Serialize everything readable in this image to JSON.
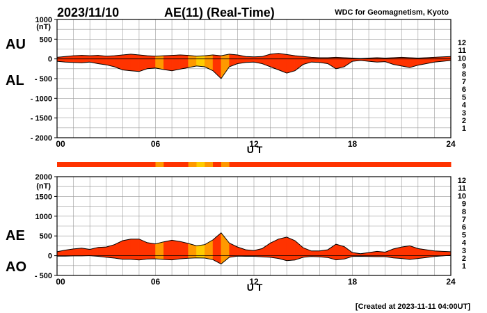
{
  "header": {
    "date": "2023/11/10",
    "title": "AE(11) (Real-Time)",
    "source": "WDC for Geomagnetism, Kyoto"
  },
  "footer": {
    "created": "[Created at 2023-11-11 04:00UT]"
  },
  "legend": {
    "labels": [
      "12",
      "11",
      "10",
      "9",
      "8",
      "7",
      "6",
      "5",
      "4",
      "3",
      "2",
      "1"
    ],
    "colors": [
      "#ff00ff",
      "#ff0000",
      "#ff9900",
      "#ffff00",
      "#00cc00",
      "#00cccc",
      "#0066ff",
      "#0000cc",
      "#cc00cc",
      "#000000",
      "#555555",
      "#aaaaaa"
    ]
  },
  "colors": {
    "stations_11": "#ff3300",
    "stations_10": "#ff9900",
    "stations_9": "#ffcc00",
    "grid": "#999999",
    "outline": "#000000"
  },
  "chart_data": [
    {
      "type": "area",
      "panel": "top",
      "series_labels": [
        "AU",
        "AL"
      ],
      "unit": "(nT)",
      "xlabel": "U T",
      "xticks": [
        "00",
        "06",
        "12",
        "18",
        "24"
      ],
      "yticks": [
        "1000",
        "500",
        "0",
        "- 500",
        "- 1000",
        "- 1500",
        "- 2000"
      ],
      "ylim": [
        -2000,
        1000
      ],
      "xlim": [
        0,
        24
      ],
      "x": [
        0,
        0.5,
        1,
        1.5,
        2,
        2.5,
        3,
        3.5,
        4,
        4.5,
        5,
        5.5,
        6,
        6.5,
        7,
        7.5,
        8,
        8.5,
        9,
        9.5,
        10,
        10.5,
        11,
        11.5,
        12,
        12.5,
        13,
        13.5,
        14,
        14.5,
        15,
        15.5,
        16,
        16.5,
        17,
        17.5,
        18,
        18.5,
        19,
        19.5,
        20,
        20.5,
        21,
        21.5,
        22,
        22.5,
        23,
        23.5,
        24
      ],
      "series": [
        {
          "name": "AU",
          "values": [
            40,
            60,
            80,
            90,
            80,
            90,
            70,
            80,
            100,
            120,
            100,
            80,
            70,
            80,
            90,
            100,
            90,
            70,
            80,
            100,
            80,
            120,
            100,
            60,
            50,
            60,
            120,
            140,
            110,
            80,
            60,
            40,
            30,
            30,
            40,
            30,
            20,
            10,
            20,
            30,
            20,
            30,
            40,
            30,
            20,
            30,
            40,
            50,
            60
          ]
        },
        {
          "name": "AL",
          "values": [
            -60,
            -80,
            -90,
            -100,
            -80,
            -120,
            -150,
            -200,
            -280,
            -300,
            -320,
            -250,
            -230,
            -270,
            -300,
            -260,
            -220,
            -180,
            -200,
            -300,
            -500,
            -200,
            -120,
            -90,
            -80,
            -120,
            -200,
            -280,
            -360,
            -300,
            -140,
            -80,
            -90,
            -120,
            -250,
            -200,
            -60,
            -40,
            -60,
            -80,
            -70,
            -140,
            -180,
            -220,
            -160,
            -120,
            -80,
            -60,
            -40
          ]
        }
      ],
      "station_count": [
        11,
        11,
        11,
        11,
        11,
        11,
        11,
        11,
        11,
        11,
        11,
        11,
        10,
        11,
        11,
        11,
        10,
        9,
        10,
        11,
        10,
        11,
        11,
        11,
        11,
        11,
        11,
        11,
        11,
        11,
        11,
        11,
        11,
        11,
        11,
        11,
        11,
        11,
        11,
        11,
        11,
        11,
        11,
        11,
        11,
        11,
        11,
        11,
        11
      ]
    },
    {
      "type": "area",
      "panel": "bottom",
      "series_labels": [
        "AE",
        "AO"
      ],
      "unit": "(nT)",
      "xlabel": "U T",
      "xticks": [
        "00",
        "06",
        "12",
        "18",
        "24"
      ],
      "yticks": [
        "2000",
        "1500",
        "1000",
        "500",
        "0",
        "- 500"
      ],
      "ylim": [
        -500,
        2000
      ],
      "xlim": [
        0,
        24
      ],
      "x": [
        0,
        0.5,
        1,
        1.5,
        2,
        2.5,
        3,
        3.5,
        4,
        4.5,
        5,
        5.5,
        6,
        6.5,
        7,
        7.5,
        8,
        8.5,
        9,
        9.5,
        10,
        10.5,
        11,
        11.5,
        12,
        12.5,
        13,
        13.5,
        14,
        14.5,
        15,
        15.5,
        16,
        16.5,
        17,
        17.5,
        18,
        18.5,
        19,
        19.5,
        20,
        20.5,
        21,
        21.5,
        22,
        22.5,
        23,
        23.5,
        24
      ],
      "series": [
        {
          "name": "AE",
          "values": [
            100,
            140,
            170,
            190,
            160,
            210,
            220,
            280,
            380,
            420,
            420,
            330,
            300,
            350,
            390,
            360,
            310,
            250,
            280,
            400,
            580,
            320,
            220,
            150,
            130,
            180,
            320,
            420,
            470,
            380,
            200,
            120,
            120,
            150,
            290,
            230,
            80,
            50,
            80,
            110,
            90,
            170,
            220,
            250,
            180,
            150,
            120,
            110,
            100
          ]
        },
        {
          "name": "AO",
          "values": [
            -10,
            -10,
            -5,
            -5,
            0,
            -15,
            -40,
            -60,
            -90,
            -90,
            -110,
            -85,
            -80,
            -95,
            -105,
            -80,
            -65,
            -55,
            -60,
            -100,
            -210,
            -40,
            -10,
            -15,
            -15,
            -30,
            -40,
            -70,
            -125,
            -110,
            -40,
            -20,
            -30,
            -45,
            -105,
            -85,
            -20,
            -15,
            -20,
            -25,
            -25,
            -55,
            -70,
            -95,
            -70,
            -45,
            -20,
            -5,
            10
          ]
        }
      ],
      "station_count": [
        11,
        11,
        11,
        11,
        11,
        11,
        11,
        11,
        11,
        11,
        11,
        11,
        10,
        11,
        11,
        11,
        10,
        9,
        10,
        11,
        10,
        11,
        11,
        11,
        11,
        11,
        11,
        11,
        11,
        11,
        11,
        11,
        11,
        11,
        11,
        11,
        11,
        11,
        11,
        11,
        11,
        11,
        11,
        11,
        11,
        11,
        11,
        11,
        11
      ]
    }
  ]
}
